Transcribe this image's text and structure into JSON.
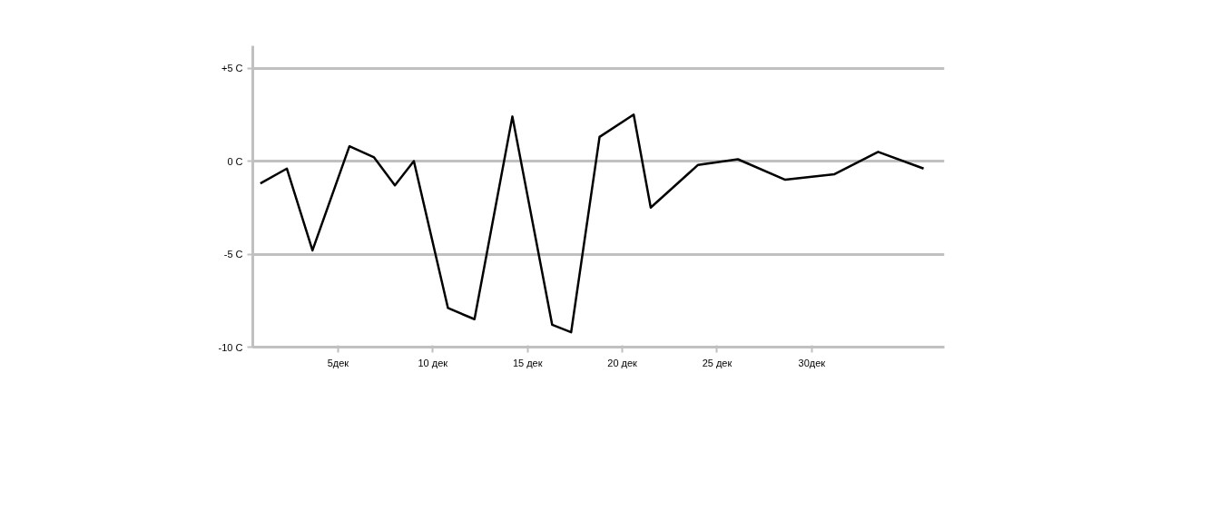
{
  "chart_data": {
    "type": "line",
    "x": [
      0.9,
      2.3,
      3.65,
      5.6,
      6.9,
      8.0,
      9.0,
      10.8,
      12.2,
      14.2,
      16.3,
      17.3,
      18.8,
      20.6,
      21.5,
      24.0,
      26.1,
      28.6,
      31.2,
      33.5,
      35.9
    ],
    "series": [
      {
        "color": "#000000",
        "values": [
          -1.2,
          -0.4,
          -4.8,
          0.8,
          0.2,
          -1.3,
          0.0,
          -7.9,
          -8.5,
          2.4,
          -8.8,
          -9.2,
          1.3,
          2.5,
          -2.5,
          -0.2,
          0.1,
          -1.0,
          -0.7,
          0.5,
          -0.4
        ]
      }
    ],
    "xlim": [
      0.5,
      37
    ],
    "ylim": [
      -10,
      6.2
    ],
    "xticks": [
      {
        "value": 5,
        "label": "5дек"
      },
      {
        "value": 10,
        "label": "10 дек"
      },
      {
        "value": 15,
        "label": "15 дек"
      },
      {
        "value": 20,
        "label": "20 дек"
      },
      {
        "value": 25,
        "label": "25 дек"
      },
      {
        "value": 30,
        "label": "30дек"
      }
    ],
    "yticks": [
      {
        "value": 5,
        "label": "+5 C"
      },
      {
        "value": 0,
        "label": "0 C"
      },
      {
        "value": -5,
        "label": "-5 C"
      },
      {
        "value": -10,
        "label": "-10 C"
      }
    ],
    "grid": "y",
    "marker": "none",
    "line_style": "solid"
  }
}
